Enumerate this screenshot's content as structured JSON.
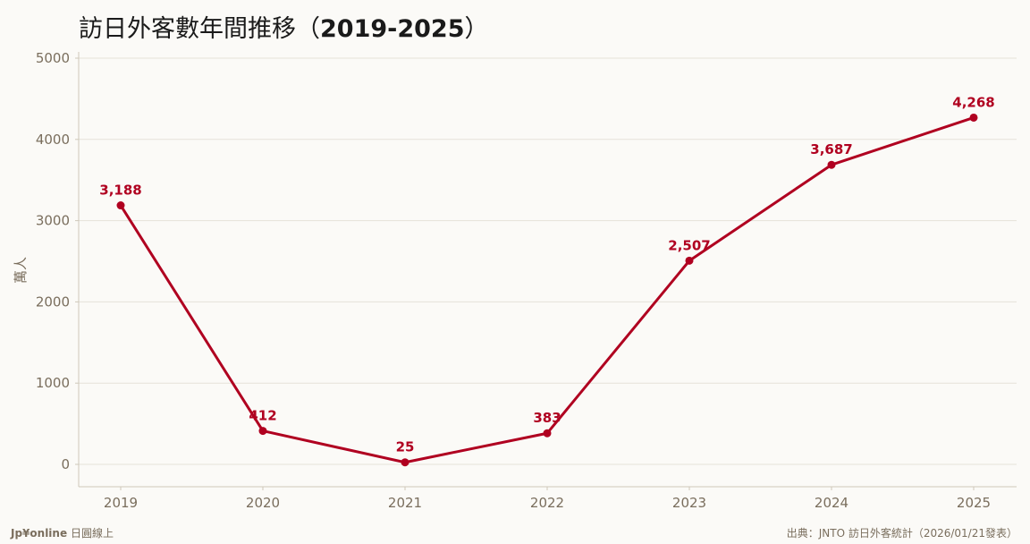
{
  "header": {
    "title": "訪日外客數年間推移（",
    "title_years": "2019-2025",
    "title_close": "）"
  },
  "footer": {
    "brand": "Jp¥online",
    "brand_suffix": "日圓線上",
    "source": "出典：JNTO 訪日外客統計（2026/01/21發表）"
  },
  "colors": {
    "line": "#b00020",
    "grid": "#e6e2d9",
    "axis_text": "#7a6e5d",
    "background": "#fbfaf7"
  },
  "chart_data": {
    "type": "line",
    "title": "訪日外客數年間推移（2019-2025）",
    "xlabel": "",
    "ylabel": "萬人",
    "categories": [
      "2019",
      "2020",
      "2021",
      "2022",
      "2023",
      "2024",
      "2025"
    ],
    "series": [
      {
        "values": [
          3188,
          412,
          25,
          383,
          2507,
          3687,
          4268
        ],
        "labels": [
          "3,188",
          "412",
          "25",
          "383",
          "2,507",
          "3,687",
          "4,268"
        ]
      }
    ],
    "ylim": [
      0,
      5000
    ],
    "yticks": [
      "0",
      "1000",
      "2000",
      "3000",
      "4000",
      "5000"
    ],
    "grid": true,
    "legend": "none"
  }
}
